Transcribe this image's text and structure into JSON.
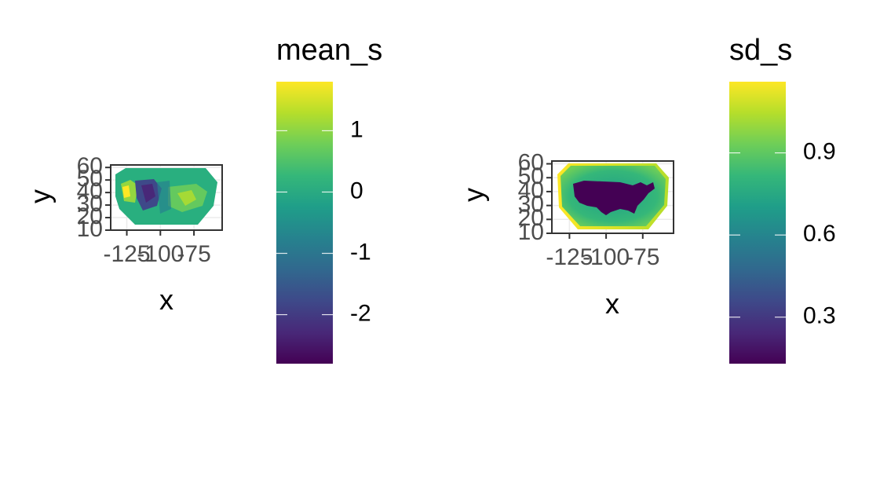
{
  "colors": {
    "viridis": [
      "#440154",
      "#482878",
      "#3e4989",
      "#31688e",
      "#26828e",
      "#1f9e89",
      "#35b779",
      "#6ece58",
      "#b5de2b",
      "#fde725"
    ],
    "grid": "#ebebeb",
    "axis": "#333333"
  },
  "chart_data": [
    {
      "type": "heatmap",
      "title": "",
      "xlabel": "x",
      "ylabel": "y",
      "x_ticks": [
        "-125",
        "-100",
        "-75"
      ],
      "x_tick_values": [
        -125,
        -100,
        -75
      ],
      "y_ticks": [
        "10",
        "20",
        "30",
        "40",
        "50",
        "60"
      ],
      "y_tick_values": [
        10,
        20,
        30,
        40,
        50,
        60
      ],
      "xlim": [
        -137,
        -54
      ],
      "ylim": [
        10,
        62
      ],
      "legend": {
        "title": "mean_s",
        "ticks": [
          "1",
          "0",
          "-1",
          "-2"
        ],
        "tick_values": [
          1,
          0,
          -1,
          -2
        ],
        "range": [
          -2.8,
          1.8
        ],
        "position": "right"
      }
    },
    {
      "type": "heatmap",
      "title": "",
      "xlabel": "x",
      "ylabel": "y",
      "x_ticks": [
        "-125",
        "-100",
        "-75"
      ],
      "x_tick_values": [
        -125,
        -100,
        -75
      ],
      "y_ticks": [
        "10",
        "20",
        "30",
        "40",
        "50",
        "60"
      ],
      "y_tick_values": [
        10,
        20,
        30,
        40,
        50,
        60
      ],
      "xlim": [
        -137,
        -54
      ],
      "ylim": [
        10,
        62
      ],
      "legend": {
        "title": "sd_s",
        "ticks": [
          "0.9",
          "0.6",
          "0.3"
        ],
        "tick_values": [
          0.9,
          0.6,
          0.3
        ],
        "range": [
          0.13,
          1.16
        ],
        "position": "right"
      }
    }
  ]
}
